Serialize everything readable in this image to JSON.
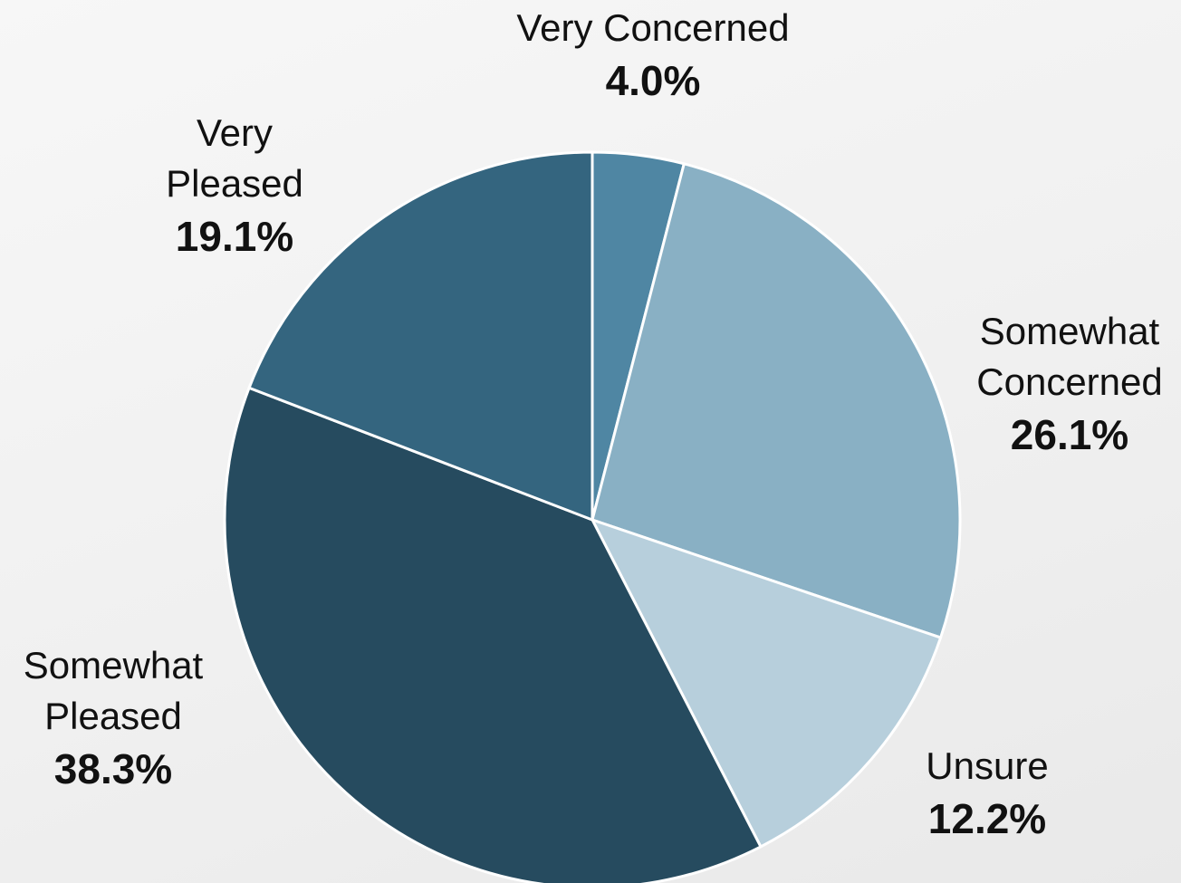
{
  "chart_data": {
    "type": "pie",
    "start_angle_deg": 0,
    "direction": "clockwise",
    "slices": [
      {
        "label_lines": [
          "Very Concerned"
        ],
        "value": 4.0,
        "value_label": "4.0%",
        "color": "#4f86a3"
      },
      {
        "label_lines": [
          "Somewhat",
          "Concerned"
        ],
        "value": 26.1,
        "value_label": "26.1%",
        "color": "#89b0c4"
      },
      {
        "label_lines": [
          "Unsure"
        ],
        "value": 12.2,
        "value_label": "12.2%",
        "color": "#b7cfdc"
      },
      {
        "label_lines": [
          "Somewhat",
          "Pleased"
        ],
        "value": 38.3,
        "value_label": "38.3%",
        "color": "#264b5f"
      },
      {
        "label_lines": [
          "Very",
          "Pleased"
        ],
        "value": 19.1,
        "value_label": "19.1%",
        "color": "#34657f"
      }
    ]
  }
}
